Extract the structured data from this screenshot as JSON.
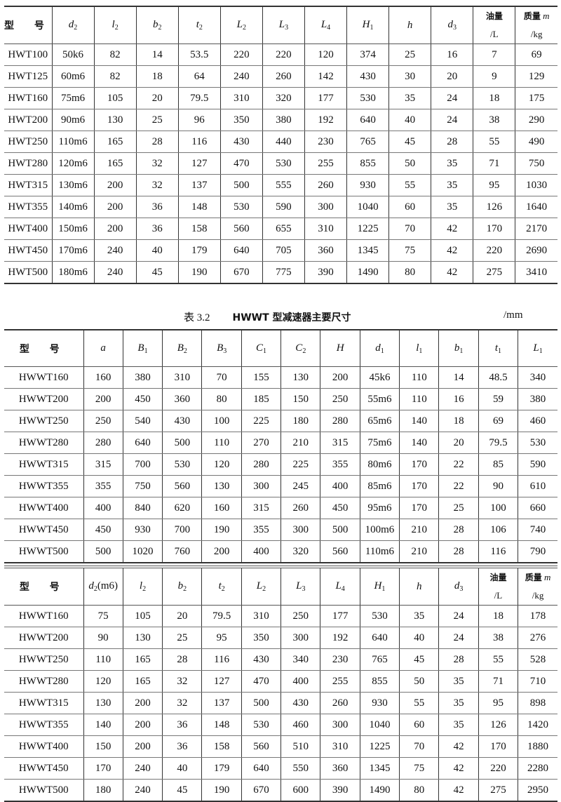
{
  "table1": {
    "headers": [
      {
        "text": "型 号",
        "kind": "zh"
      },
      {
        "sym": "d",
        "sub": "2"
      },
      {
        "sym": "l",
        "sub": "2"
      },
      {
        "sym": "b",
        "sub": "2"
      },
      {
        "sym": "t",
        "sub": "2"
      },
      {
        "sym": "L",
        "sub": "2"
      },
      {
        "sym": "L",
        "sub": "3"
      },
      {
        "sym": "L",
        "sub": "4"
      },
      {
        "sym": "H",
        "sub": "1"
      },
      {
        "sym": "h"
      },
      {
        "sym": "d",
        "sub": "3"
      },
      {
        "line1": "油量",
        "line2": "/L"
      },
      {
        "line1": "质量",
        "sym1": "m",
        "line2": "/kg"
      }
    ],
    "rows": [
      [
        "HWT100",
        "50k6",
        "82",
        "14",
        "53.5",
        "220",
        "220",
        "120",
        "374",
        "25",
        "16",
        "7",
        "69"
      ],
      [
        "HWT125",
        "60m6",
        "82",
        "18",
        "64",
        "240",
        "260",
        "142",
        "430",
        "30",
        "20",
        "9",
        "129"
      ],
      [
        "HWT160",
        "75m6",
        "105",
        "20",
        "79.5",
        "310",
        "320",
        "177",
        "530",
        "35",
        "24",
        "18",
        "175"
      ],
      [
        "HWT200",
        "90m6",
        "130",
        "25",
        "96",
        "350",
        "380",
        "192",
        "640",
        "40",
        "24",
        "38",
        "290"
      ],
      [
        "HWT250",
        "110m6",
        "165",
        "28",
        "116",
        "430",
        "440",
        "230",
        "765",
        "45",
        "28",
        "55",
        "490"
      ],
      [
        "HWT280",
        "120m6",
        "165",
        "32",
        "127",
        "470",
        "530",
        "255",
        "855",
        "50",
        "35",
        "71",
        "750"
      ],
      [
        "HWT315",
        "130m6",
        "200",
        "32",
        "137",
        "500",
        "555",
        "260",
        "930",
        "55",
        "35",
        "95",
        "1030"
      ],
      [
        "HWT355",
        "140m6",
        "200",
        "36",
        "148",
        "530",
        "590",
        "300",
        "1040",
        "60",
        "35",
        "126",
        "1640"
      ],
      [
        "HWT400",
        "150m6",
        "200",
        "36",
        "158",
        "560",
        "655",
        "310",
        "1225",
        "70",
        "42",
        "170",
        "2170"
      ],
      [
        "HWT450",
        "170m6",
        "240",
        "40",
        "179",
        "640",
        "705",
        "360",
        "1345",
        "75",
        "42",
        "220",
        "2690"
      ],
      [
        "HWT500",
        "180m6",
        "240",
        "45",
        "190",
        "670",
        "775",
        "390",
        "1490",
        "80",
        "42",
        "275",
        "3410"
      ]
    ]
  },
  "caption": {
    "number": "表 3.2",
    "title": "HWWT 型减速器主要尺寸",
    "unit": "/mm"
  },
  "table2": {
    "headers": [
      {
        "text": "型 号",
        "kind": "zh"
      },
      {
        "sym": "a"
      },
      {
        "sym": "B",
        "sub": "1"
      },
      {
        "sym": "B",
        "sub": "2"
      },
      {
        "sym": "B",
        "sub": "3"
      },
      {
        "sym": "C",
        "sub": "1"
      },
      {
        "sym": "C",
        "sub": "2"
      },
      {
        "sym": "H"
      },
      {
        "sym": "d",
        "sub": "1"
      },
      {
        "sym": "l",
        "sub": "1"
      },
      {
        "sym": "b",
        "sub": "1"
      },
      {
        "sym": "t",
        "sub": "1"
      },
      {
        "sym": "L",
        "sub": "1"
      }
    ],
    "rows": [
      [
        "HWWT160",
        "160",
        "380",
        "310",
        "70",
        "155",
        "130",
        "200",
        "45k6",
        "110",
        "14",
        "48.5",
        "340"
      ],
      [
        "HWWT200",
        "200",
        "450",
        "360",
        "80",
        "185",
        "150",
        "250",
        "55m6",
        "110",
        "16",
        "59",
        "380"
      ],
      [
        "HWWT250",
        "250",
        "540",
        "430",
        "100",
        "225",
        "180",
        "280",
        "65m6",
        "140",
        "18",
        "69",
        "460"
      ],
      [
        "HWWT280",
        "280",
        "640",
        "500",
        "110",
        "270",
        "210",
        "315",
        "75m6",
        "140",
        "20",
        "79.5",
        "530"
      ],
      [
        "HWWT315",
        "315",
        "700",
        "530",
        "120",
        "280",
        "225",
        "355",
        "80m6",
        "170",
        "22",
        "85",
        "590"
      ],
      [
        "HWWT355",
        "355",
        "750",
        "560",
        "130",
        "300",
        "245",
        "400",
        "85m6",
        "170",
        "22",
        "90",
        "610"
      ],
      [
        "HWWT400",
        "400",
        "840",
        "620",
        "160",
        "315",
        "260",
        "450",
        "95m6",
        "170",
        "25",
        "100",
        "660"
      ],
      [
        "HWWT450",
        "450",
        "930",
        "700",
        "190",
        "355",
        "300",
        "500",
        "100m6",
        "210",
        "28",
        "106",
        "740"
      ],
      [
        "HWWT500",
        "500",
        "1020",
        "760",
        "200",
        "400",
        "320",
        "560",
        "110m6",
        "210",
        "28",
        "116",
        "790"
      ]
    ]
  },
  "table3": {
    "headers": [
      {
        "text": "型 号",
        "kind": "zh"
      },
      {
        "sym": "d",
        "sub": "2",
        "suffix": "(m6)"
      },
      {
        "sym": "l",
        "sub": "2"
      },
      {
        "sym": "b",
        "sub": "2"
      },
      {
        "sym": "t",
        "sub": "2"
      },
      {
        "sym": "L",
        "sub": "2"
      },
      {
        "sym": "L",
        "sub": "3"
      },
      {
        "sym": "L",
        "sub": "4"
      },
      {
        "sym": "H",
        "sub": "1"
      },
      {
        "sym": "h"
      },
      {
        "sym": "d",
        "sub": "3"
      },
      {
        "line1": "油量",
        "line2": "/L"
      },
      {
        "line1": "质量",
        "sym1": "m",
        "line2": "/kg"
      }
    ],
    "rows": [
      [
        "HWWT160",
        "75",
        "105",
        "20",
        "79.5",
        "310",
        "250",
        "177",
        "530",
        "35",
        "24",
        "18",
        "178"
      ],
      [
        "HWWT200",
        "90",
        "130",
        "25",
        "95",
        "350",
        "300",
        "192",
        "640",
        "40",
        "24",
        "38",
        "276"
      ],
      [
        "HWWT250",
        "110",
        "165",
        "28",
        "116",
        "430",
        "340",
        "230",
        "765",
        "45",
        "28",
        "55",
        "528"
      ],
      [
        "HWWT280",
        "120",
        "165",
        "32",
        "127",
        "470",
        "400",
        "255",
        "855",
        "50",
        "35",
        "71",
        "710"
      ],
      [
        "HWWT315",
        "130",
        "200",
        "32",
        "137",
        "500",
        "430",
        "260",
        "930",
        "55",
        "35",
        "95",
        "898"
      ],
      [
        "HWWT355",
        "140",
        "200",
        "36",
        "148",
        "530",
        "460",
        "300",
        "1040",
        "60",
        "35",
        "126",
        "1420"
      ],
      [
        "HWWT400",
        "150",
        "200",
        "36",
        "158",
        "560",
        "510",
        "310",
        "1225",
        "70",
        "42",
        "170",
        "1880"
      ],
      [
        "HWWT450",
        "170",
        "240",
        "40",
        "179",
        "640",
        "550",
        "360",
        "1345",
        "75",
        "42",
        "220",
        "2280"
      ],
      [
        "HWWT500",
        "180",
        "240",
        "45",
        "190",
        "670",
        "600",
        "390",
        "1490",
        "80",
        "42",
        "275",
        "2950"
      ]
    ]
  }
}
